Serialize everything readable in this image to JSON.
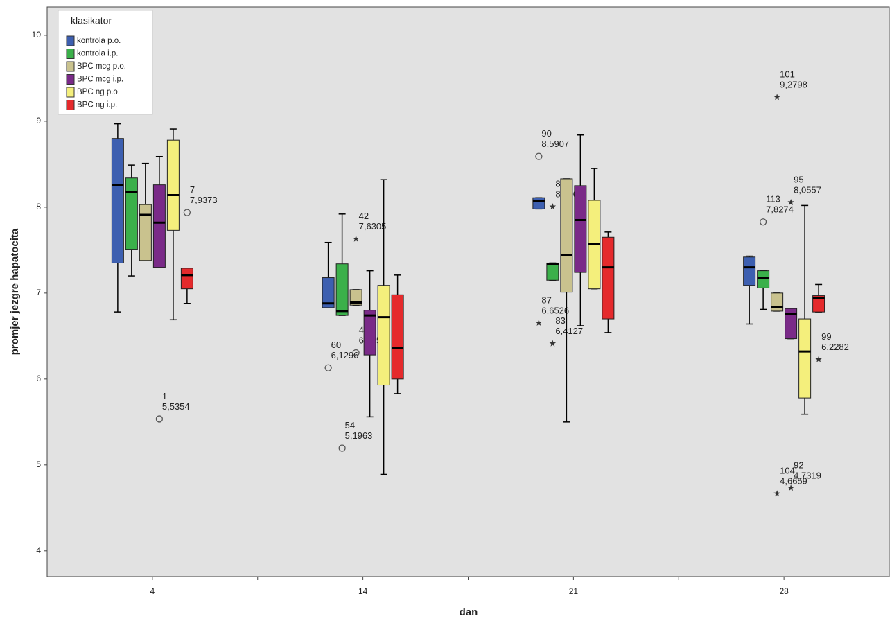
{
  "chart_data": {
    "type": "boxplot",
    "x_label": "dan",
    "y_label": "promjer jezgre hapatocita",
    "legend_title": "klasikator",
    "legend_position": "upper left",
    "categories": [
      "4",
      "14",
      "21",
      "28"
    ],
    "ylim": [
      3.7,
      10.33
    ],
    "yticks": [
      4,
      5,
      6,
      7,
      8,
      9,
      10
    ],
    "series": [
      {
        "name": "kontrola p.o.",
        "color": "#3d5fb0",
        "boxes": [
          {
            "whislo": 6.78,
            "q1": 7.35,
            "med": 8.26,
            "q3": 8.8,
            "whishi": 8.97
          },
          {
            "whislo": 6.83,
            "q1": 6.83,
            "med": 6.88,
            "q3": 7.18,
            "whishi": 7.59,
            "outliers": [
              {
                "label": "60",
                "value": 6.1296,
                "value_label": "6,1296",
                "marker": "circle"
              }
            ]
          },
          {
            "whislo": 7.98,
            "q1": 7.98,
            "med": 8.07,
            "q3": 8.11,
            "whishi": 8.11,
            "outliers": [
              {
                "label": "90",
                "value": 8.5907,
                "value_label": "8,5907",
                "marker": "circle"
              },
              {
                "label": "87",
                "value": 6.6526,
                "value_label": "6,6526",
                "marker": "star"
              }
            ]
          },
          {
            "whislo": 6.64,
            "q1": 7.09,
            "med": 7.3,
            "q3": 7.42,
            "whishi": 7.43
          }
        ]
      },
      {
        "name": "kontrola i.p.",
        "color": "#3bb04a",
        "boxes": [
          {
            "whislo": 7.2,
            "q1": 7.51,
            "med": 8.18,
            "q3": 8.34,
            "whishi": 8.49
          },
          {
            "whislo": 6.74,
            "q1": 6.74,
            "med": 6.79,
            "q3": 7.34,
            "whishi": 7.92,
            "outliers": [
              {
                "label": "54",
                "value": 5.1963,
                "value_label": "5,1963",
                "marker": "circle"
              }
            ]
          },
          {
            "whislo": 7.15,
            "q1": 7.15,
            "med": 7.34,
            "q3": 7.35,
            "whishi": 7.35,
            "outliers": [
              {
                "label": "82",
                "value": 8.0065,
                "value_label": "8,0065",
                "marker": "star"
              },
              {
                "label": "83",
                "value": 6.4127,
                "value_label": "6,4127",
                "marker": "star"
              }
            ]
          },
          {
            "whislo": 6.81,
            "q1": 7.06,
            "med": 7.18,
            "q3": 7.26,
            "whishi": 7.26,
            "outliers": [
              {
                "label": "113",
                "value": 7.8274,
                "value_label": "7,8274",
                "marker": "circle"
              }
            ]
          }
        ]
      },
      {
        "name": "BPC mcg p.o.",
        "color": "#c9c28e",
        "boxes": [
          {
            "whislo": 7.38,
            "q1": 7.38,
            "med": 7.91,
            "q3": 8.03,
            "whishi": 8.51
          },
          {
            "whislo": 6.86,
            "q1": 6.86,
            "med": 6.89,
            "q3": 7.04,
            "whishi": 7.04,
            "outliers": [
              {
                "label": "42",
                "value": 7.6305,
                "value_label": "7,6305",
                "marker": "star"
              },
              {
                "label": "44",
                "value": 6.3051,
                "value_label": "6,3051",
                "marker": "circle"
              }
            ]
          },
          {
            "whislo": 5.5,
            "q1": 7.01,
            "med": 7.44,
            "q3": 8.33,
            "whishi": 8.33
          },
          {
            "whislo": 6.79,
            "q1": 6.79,
            "med": 6.84,
            "q3": 7.0,
            "whishi": 7.0,
            "outliers": [
              {
                "label": "101",
                "value": 9.2798,
                "value_label": "9,2798",
                "marker": "star"
              },
              {
                "label": "104",
                "value": 4.6659,
                "value_label": "4,6659",
                "marker": "star"
              }
            ]
          }
        ]
      },
      {
        "name": "BPC mcg i.p.",
        "color": "#7a2a88",
        "boxes": [
          {
            "whislo": 7.3,
            "q1": 7.3,
            "med": 7.82,
            "q3": 8.26,
            "whishi": 8.59,
            "outliers": [
              {
                "label": "1",
                "value": 5.5354,
                "value_label": "5,5354",
                "marker": "circle"
              }
            ]
          },
          {
            "whislo": 5.56,
            "q1": 6.28,
            "med": 6.74,
            "q3": 6.8,
            "whishi": 7.26
          },
          {
            "whislo": 6.62,
            "q1": 7.24,
            "med": 7.85,
            "q3": 8.25,
            "whishi": 8.84
          },
          {
            "whislo": 6.47,
            "q1": 6.47,
            "med": 6.76,
            "q3": 6.82,
            "whishi": 6.82,
            "outliers": [
              {
                "label": "95",
                "value": 8.0557,
                "value_label": "8,0557",
                "marker": "star"
              },
              {
                "label": "92",
                "value": 4.7319,
                "value_label": "4,7319",
                "marker": "star"
              }
            ]
          }
        ]
      },
      {
        "name": "BPC ng p.o.",
        "color": "#f4ef7c",
        "boxes": [
          {
            "whislo": 6.69,
            "q1": 7.73,
            "med": 8.14,
            "q3": 8.78,
            "whishi": 8.91
          },
          {
            "whislo": 4.89,
            "q1": 5.93,
            "med": 6.72,
            "q3": 7.09,
            "whishi": 8.32
          },
          {
            "whislo": 7.05,
            "q1": 7.05,
            "med": 7.57,
            "q3": 8.08,
            "whishi": 8.45
          },
          {
            "whislo": 5.59,
            "q1": 5.78,
            "med": 6.32,
            "q3": 6.7,
            "whishi": 8.02
          }
        ]
      },
      {
        "name": "BPC ng i.p.",
        "color": "#e52a2c",
        "boxes": [
          {
            "whislo": 6.88,
            "q1": 7.05,
            "med": 7.21,
            "q3": 7.29,
            "whishi": 7.29,
            "outliers": [
              {
                "label": "7",
                "value": 7.9373,
                "value_label": "7,9373",
                "marker": "circle"
              }
            ]
          },
          {
            "whislo": 5.83,
            "q1": 6.0,
            "med": 6.36,
            "q3": 6.98,
            "whishi": 7.21
          },
          {
            "whislo": 6.54,
            "q1": 6.7,
            "med": 7.3,
            "q3": 7.65,
            "whishi": 7.71
          },
          {
            "whislo": 6.78,
            "q1": 6.78,
            "med": 6.94,
            "q3": 6.97,
            "whishi": 7.1,
            "outliers": [
              {
                "label": "99",
                "value": 6.2282,
                "value_label": "6,2282",
                "marker": "star"
              }
            ]
          }
        ]
      }
    ]
  }
}
